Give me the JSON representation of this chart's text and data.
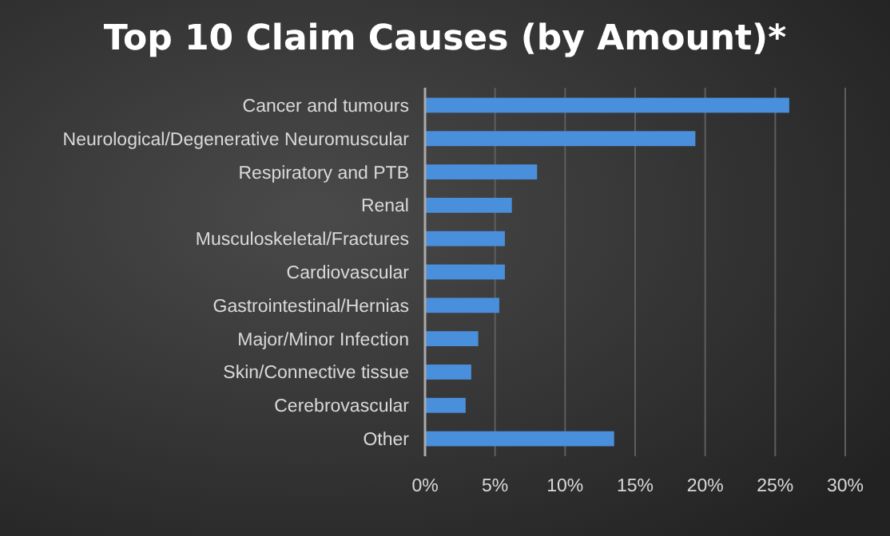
{
  "chart_data": {
    "type": "bar",
    "orientation": "horizontal",
    "title": "Top 10 Claim Causes (by Amount)*",
    "categories": [
      "Cancer and tumours",
      "Neurological/Degenerative Neuromuscular",
      "Respiratory and PTB",
      "Renal",
      "Musculoskeletal/Fractures",
      "Cardiovascular",
      "Gastrointestinal/Hernias",
      "Major/Minor Infection",
      "Skin/Connective tissue",
      "Cerebrovascular",
      "Other"
    ],
    "values": [
      26.0,
      19.3,
      8.0,
      6.2,
      5.7,
      5.7,
      5.3,
      3.8,
      3.3,
      2.9,
      13.5
    ],
    "color": "#4a8fdc",
    "xlim": [
      0,
      30
    ],
    "xticks": [
      {
        "value": 0,
        "label": "0%"
      },
      {
        "value": 5,
        "label": "5%"
      },
      {
        "value": 10,
        "label": "10%"
      },
      {
        "value": 15,
        "label": "15%"
      },
      {
        "value": 20,
        "label": "20%"
      },
      {
        "value": 25,
        "label": "25%"
      },
      {
        "value": 30,
        "label": "30%"
      }
    ],
    "grid": "x"
  }
}
